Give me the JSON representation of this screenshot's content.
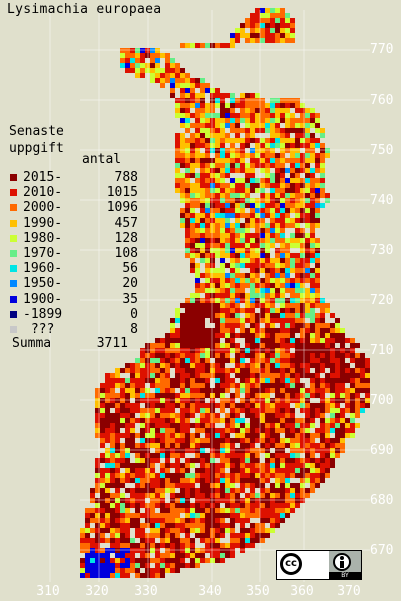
{
  "title": "Lysimachia europaea",
  "legend": {
    "heading_line1": "Senaste",
    "heading_line2": "uppgift",
    "count_header": "antal",
    "items": [
      {
        "label": "2015-",
        "count": "788",
        "color": "#8b0000"
      },
      {
        "label": "2010-",
        "count": "1015",
        "color": "#dd1100"
      },
      {
        "label": "2000-",
        "count": "1096",
        "color": "#ff6a00"
      },
      {
        "label": "1990-",
        "count": "457",
        "color": "#ffc000"
      },
      {
        "label": "1980-",
        "count": "128",
        "color": "#ccff33"
      },
      {
        "label": "1970-",
        "count": "108",
        "color": "#66ee88"
      },
      {
        "label": "1960-",
        "count": "56",
        "color": "#00e5e5"
      },
      {
        "label": "1950-",
        "count": "20",
        "color": "#0088ff"
      },
      {
        "label": "1900-",
        "count": "35",
        "color": "#0000dd"
      },
      {
        "label": "-1899",
        "count": "0",
        "color": "#000080"
      },
      {
        "label": " ???",
        "count": "8",
        "color": "#c8c8c8"
      }
    ],
    "total_label": "Summa",
    "total_count": "3711"
  },
  "x_ticks": [
    "310",
    "320",
    "330",
    "340",
    "350",
    "360",
    "370"
  ],
  "y_ticks": [
    "770",
    "760",
    "750",
    "740",
    "730",
    "720",
    "710",
    "700",
    "690",
    "680",
    "670"
  ],
  "license_badge": {
    "cc": "cc",
    "by": "BY"
  },
  "map_colors": {
    "background": "#e0e0cc",
    "grid": "#ffffff"
  }
}
